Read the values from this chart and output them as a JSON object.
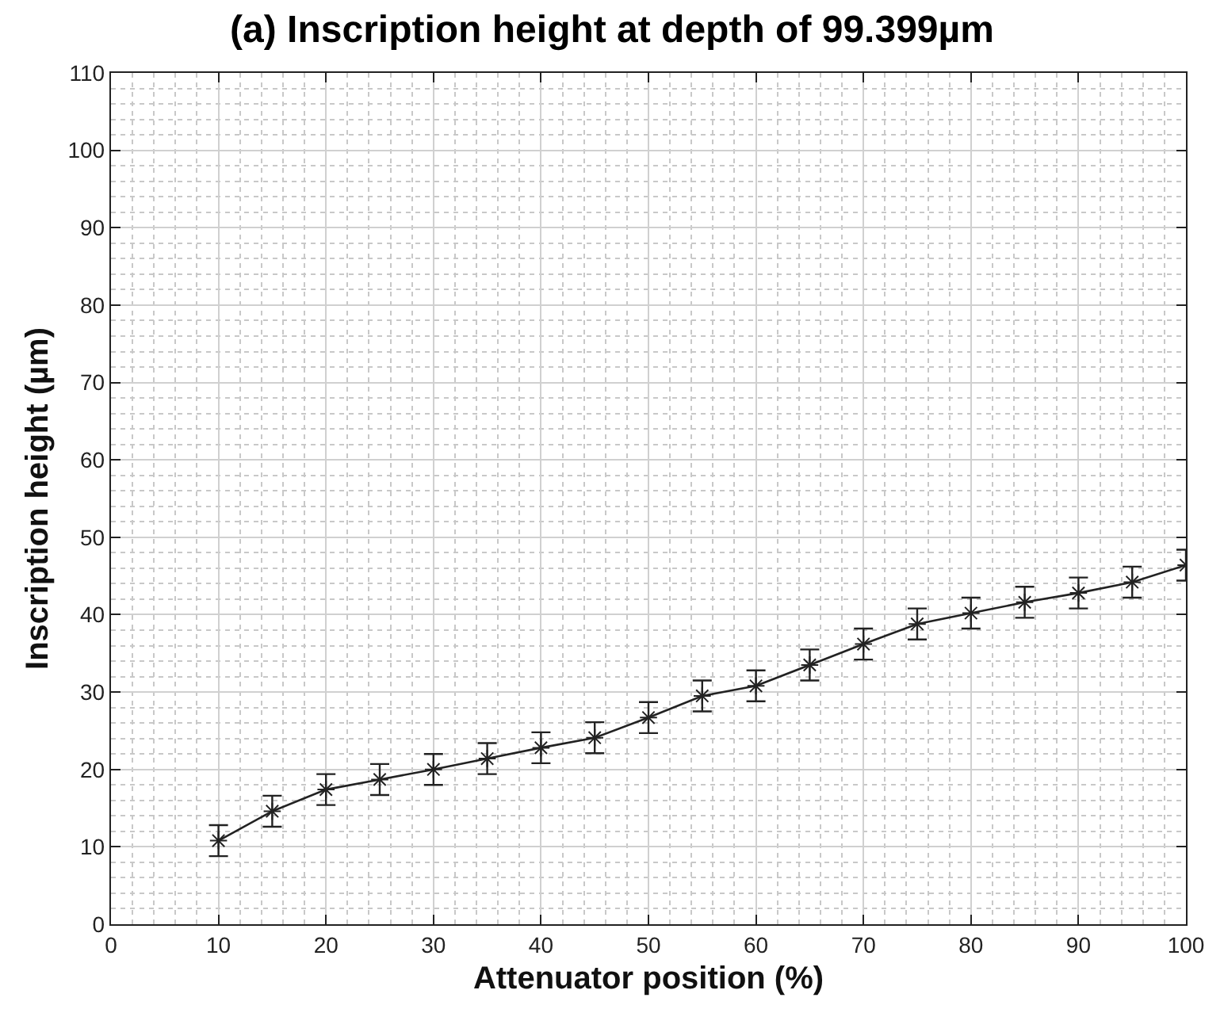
{
  "chart_data": {
    "type": "line",
    "title": "(a) Inscription height at depth of 99.399µm",
    "xlabel": "Attenuator position (%)",
    "ylabel": "Inscription height (µm)",
    "x": [
      10,
      15,
      20,
      25,
      30,
      35,
      40,
      45,
      50,
      55,
      60,
      65,
      70,
      75,
      80,
      85,
      90,
      95,
      100
    ],
    "series": [
      {
        "color": "#222222",
        "values": [
          10.8,
          14.6,
          17.4,
          18.7,
          20.0,
          21.4,
          22.8,
          24.1,
          26.7,
          29.5,
          30.8,
          33.5,
          36.2,
          38.8,
          40.2,
          41.6,
          42.8,
          44.2,
          46.4
        ],
        "errors": [
          2,
          2,
          2,
          2,
          2,
          2,
          2,
          2,
          2,
          2,
          2,
          2,
          2,
          2,
          2,
          2,
          2,
          2,
          2
        ]
      }
    ],
    "xlim": [
      0,
      100
    ],
    "ylim": [
      0,
      110
    ],
    "xticks": [
      0,
      10,
      20,
      30,
      40,
      50,
      60,
      70,
      80,
      90,
      100
    ],
    "yticks": [
      0,
      10,
      20,
      30,
      40,
      50,
      60,
      70,
      80,
      90,
      100,
      110
    ],
    "grid": true,
    "marker": "cross",
    "line_style": "solid"
  }
}
